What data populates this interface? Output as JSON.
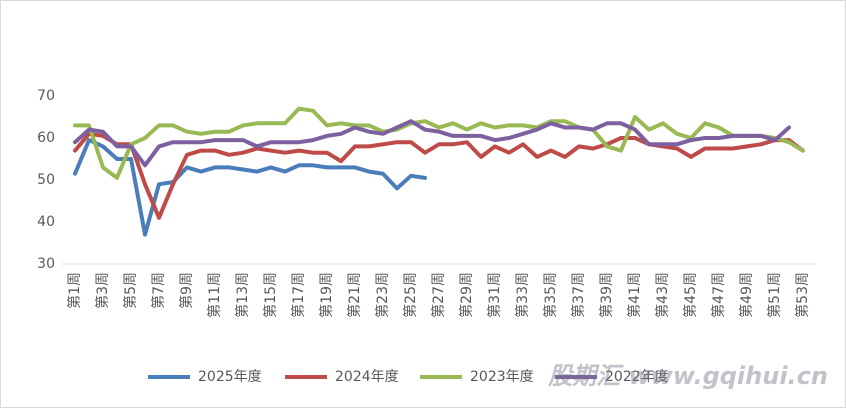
{
  "chart_data": {
    "type": "line",
    "categories": [
      "第1周",
      null,
      "第3周",
      null,
      "第5周",
      null,
      "第7周",
      null,
      "第9周",
      null,
      "第11周",
      null,
      "第13周",
      null,
      "第15周",
      null,
      "第17周",
      null,
      "第19周",
      null,
      "第21周",
      null,
      "第23周",
      null,
      "第25周",
      null,
      "第27周",
      null,
      "第29周",
      null,
      "第31周",
      null,
      "第33周",
      null,
      "第35周",
      null,
      "第37周",
      null,
      "第39周",
      null,
      "第41周",
      null,
      "第43周",
      null,
      "第45周",
      null,
      "第47周",
      null,
      "第49周",
      null,
      "第51周",
      null,
      "第53周"
    ],
    "series": [
      {
        "name": "2025年度",
        "color": "#4a7ebb",
        "values": [
          51.5,
          59.5,
          58,
          55,
          55,
          37,
          49,
          49.5,
          53,
          52,
          53,
          53,
          52.5,
          52,
          53,
          52,
          53.5,
          53.5,
          53,
          53,
          53,
          52,
          51.5,
          48,
          51,
          50.5,
          null,
          null,
          null,
          null,
          null,
          null,
          null,
          null,
          null,
          null,
          null,
          null,
          null,
          null,
          null,
          null,
          null,
          null,
          null,
          null,
          null,
          null,
          null,
          null,
          null,
          null,
          null
        ]
      },
      {
        "name": "2024年度",
        "color": "#be4b48",
        "values": [
          57,
          61,
          60.5,
          58.5,
          58.5,
          49,
          41,
          49,
          56,
          57,
          57,
          56,
          56.5,
          57.5,
          57,
          56.5,
          57,
          56.5,
          56.5,
          54.5,
          58,
          58,
          58.5,
          59,
          59,
          56.5,
          58.5,
          58.5,
          59,
          55.5,
          58,
          56.5,
          58.5,
          55.5,
          57,
          55.5,
          58,
          57.5,
          58.5,
          60,
          60,
          58.5,
          58,
          57.5,
          55.5,
          57.5,
          57.5,
          57.5,
          58,
          58.5,
          59.5,
          59.5,
          57
        ]
      },
      {
        "name": "2023年度",
        "color": "#98b954",
        "values": [
          63,
          63,
          53,
          50.5,
          58.5,
          60,
          63,
          63,
          61.5,
          61,
          61.5,
          61.5,
          63,
          63.5,
          63.5,
          63.5,
          67,
          66.5,
          63,
          63.5,
          63,
          63,
          61.5,
          62,
          63.5,
          64,
          62.5,
          63.5,
          62,
          63.5,
          62.5,
          63,
          63,
          62.5,
          64,
          64,
          62.5,
          62,
          58,
          57,
          65,
          62,
          63.5,
          61,
          60,
          63.5,
          62.5,
          60.5,
          60.5,
          60.5,
          60,
          59,
          57
        ]
      },
      {
        "name": "2022年度",
        "color": "#7d60a0",
        "values": [
          59,
          62,
          61.5,
          58,
          58,
          53.5,
          58,
          59,
          59,
          59,
          59.5,
          59.5,
          59.5,
          58,
          59,
          59,
          59,
          59.5,
          60.5,
          61,
          62.5,
          61.5,
          61,
          62.5,
          64,
          62,
          61.5,
          60.5,
          60.5,
          60.5,
          59.5,
          60,
          61,
          62,
          63.5,
          62.5,
          62.5,
          62,
          63.5,
          63.5,
          62,
          58.5,
          58.5,
          58.5,
          59.5,
          60,
          60,
          60.5,
          60.5,
          60.5,
          59.5,
          62.5,
          null
        ]
      }
    ],
    "ylim": [
      30,
      70
    ],
    "yticks": [
      30,
      40,
      50,
      60,
      70
    ],
    "grid": false,
    "legend": "bottom",
    "watermark": "股期汇 www.gqihui.cn"
  }
}
